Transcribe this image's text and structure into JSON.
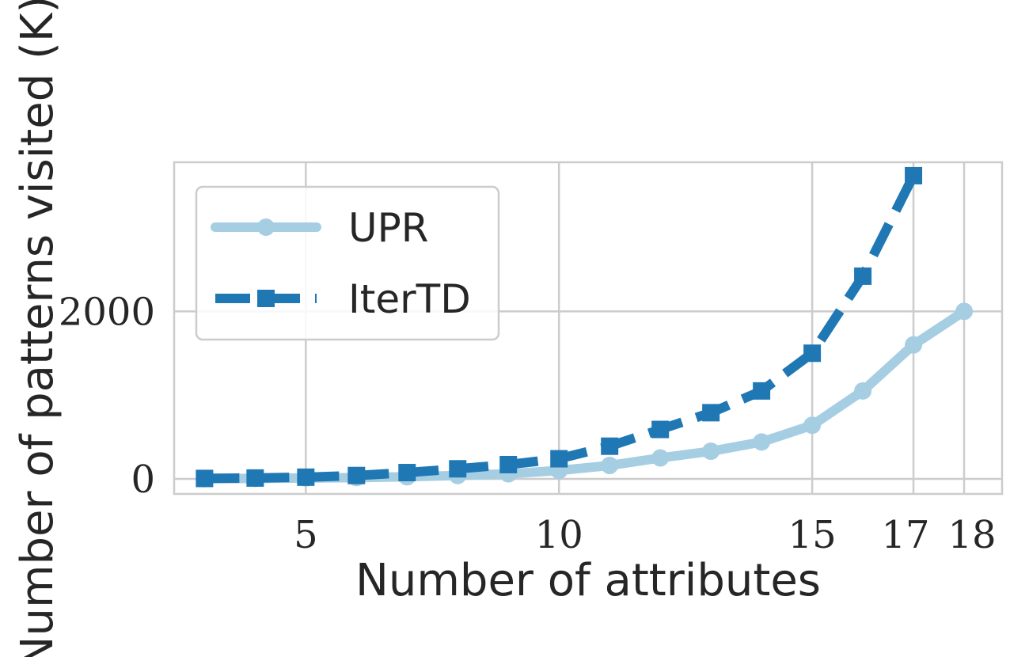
{
  "chart_data": {
    "type": "line",
    "xlabel": "Number of attributes",
    "ylabel": "Number of patterns visited (K)",
    "xticks": [
      5,
      10,
      15,
      17,
      18
    ],
    "xtick_labels": [
      "5",
      "10",
      "15",
      "17",
      "18"
    ],
    "yticks": [
      0,
      2000
    ],
    "ytick_labels": [
      "0",
      "2000"
    ],
    "xlim": [
      2.4,
      18.75
    ],
    "ylim": [
      -180,
      3780
    ],
    "grid": true,
    "legend_position": "upper-left",
    "series": [
      {
        "name": "UPR",
        "color": "#a6cee3",
        "linestyle": "solid",
        "marker": "circle",
        "x": [
          3,
          4,
          5,
          6,
          7,
          8,
          9,
          10,
          11,
          12,
          13,
          14,
          15,
          16,
          17,
          18
        ],
        "y": [
          2,
          5,
          10,
          15,
          25,
          40,
          60,
          100,
          160,
          250,
          330,
          440,
          640,
          1050,
          1600,
          2000
        ]
      },
      {
        "name": "IterTD",
        "color": "#1f78b4",
        "linestyle": "dashed",
        "marker": "square",
        "x": [
          3,
          4,
          5,
          6,
          7,
          8,
          9,
          10,
          11,
          12,
          13,
          14,
          15,
          16,
          17
        ],
        "y": [
          5,
          10,
          20,
          40,
          75,
          120,
          170,
          240,
          390,
          590,
          790,
          1050,
          1500,
          2420,
          3620
        ]
      }
    ]
  }
}
